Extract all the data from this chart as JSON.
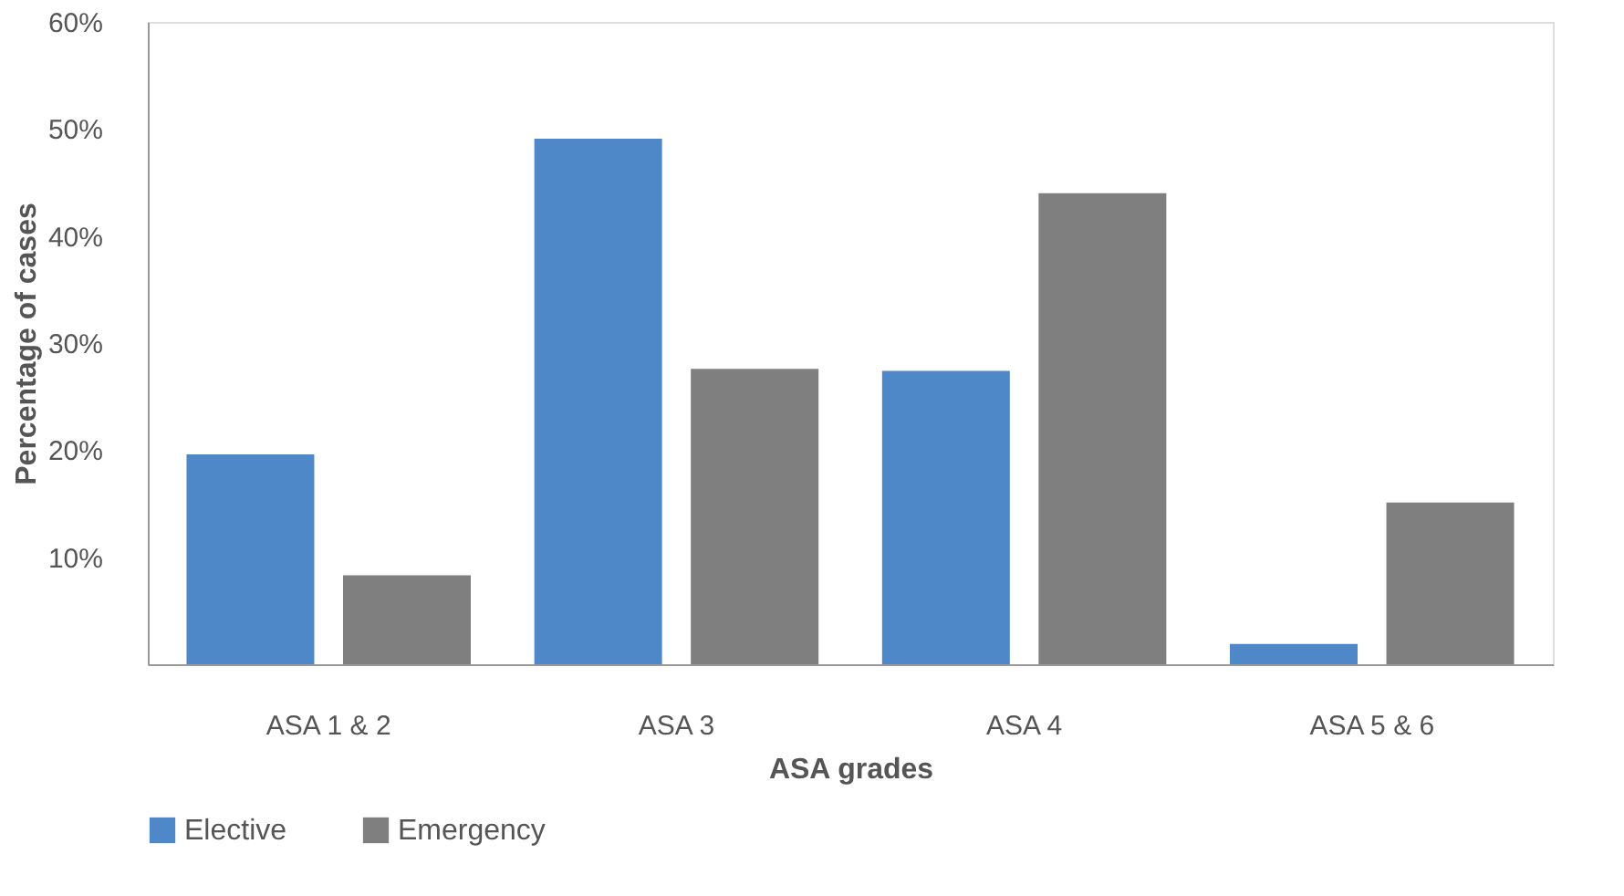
{
  "chart_data": {
    "type": "bar",
    "xlabel": "ASA grades",
    "ylabel": "Percentage of cases",
    "categories": [
      "ASA 1 & 2",
      "ASA 3",
      "ASA 4",
      "ASA 5 & 6"
    ],
    "series": [
      {
        "name": "Elective",
        "color": "#4f88c8",
        "values": [
          19.6,
          49.1,
          27.4,
          1.9
        ]
      },
      {
        "name": "Emergency",
        "color": "#7f7f7f",
        "values": [
          8.3,
          27.6,
          44.0,
          15.1
        ]
      }
    ],
    "ylim": [
      0,
      60
    ],
    "yticks": [
      {
        "value": 10,
        "label": "10%"
      },
      {
        "value": 20,
        "label": "20%"
      },
      {
        "value": 30,
        "label": "30%"
      },
      {
        "value": 40,
        "label": "40%"
      },
      {
        "value": 50,
        "label": "50%"
      },
      {
        "value": 60,
        "label": "60%"
      }
    ],
    "grid": false,
    "legend": "bottom"
  }
}
